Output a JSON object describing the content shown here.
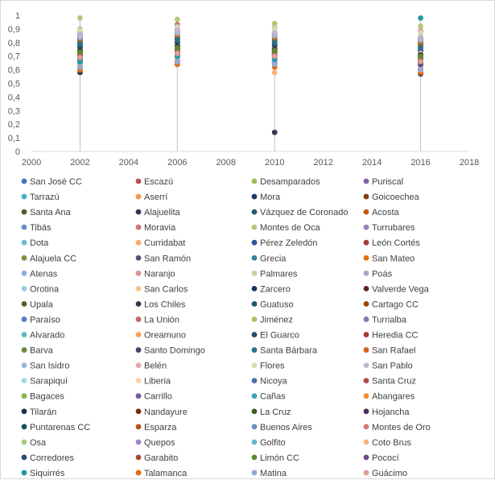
{
  "chart_data": {
    "type": "scatter",
    "title": "",
    "xlabel": "",
    "ylabel": "",
    "xlim": [
      2000,
      2018
    ],
    "ylim": [
      0,
      1
    ],
    "x_ticks": [
      2000,
      2002,
      2004,
      2006,
      2008,
      2010,
      2012,
      2014,
      2016,
      2018
    ],
    "y_ticks": [
      0,
      0.1,
      0.2,
      0.3,
      0.4,
      0.5,
      0.6,
      0.7,
      0.8,
      0.9,
      1
    ],
    "y_tick_labels": [
      "0",
      "0,1",
      "0,2",
      "0,3",
      "0,4",
      "0,5",
      "0,6",
      "0,7",
      "0,8",
      "0,9",
      "1"
    ],
    "grid": false,
    "legend_position": "bottom",
    "legend_columns": 4,
    "drop_lines": true,
    "x": [
      2002,
      2006,
      2010,
      2016
    ],
    "series": [
      {
        "name": "San José CC",
        "color": "#4472c4",
        "values": [
          0.78,
          0.82,
          0.74,
          0.72
        ]
      },
      {
        "name": "Escazú",
        "color": "#c0504d",
        "values": [
          0.86,
          0.93,
          0.87,
          0.88
        ]
      },
      {
        "name": "Desamparados",
        "color": "#9bbb59",
        "values": [
          0.76,
          0.79,
          0.76,
          0.7
        ]
      },
      {
        "name": "Puriscal",
        "color": "#8064a2",
        "values": [
          0.7,
          0.72,
          0.7,
          0.66
        ]
      },
      {
        "name": "Tarrazú",
        "color": "#4bacc6",
        "values": [
          0.67,
          0.71,
          0.69,
          0.64
        ]
      },
      {
        "name": "Aserrí",
        "color": "#f79646",
        "values": [
          0.72,
          0.74,
          0.73,
          0.68
        ]
      },
      {
        "name": "Mora",
        "color": "#1f3864",
        "values": [
          0.74,
          0.78,
          0.74,
          0.71
        ]
      },
      {
        "name": "Goicoechea",
        "color": "#843c0c",
        "values": [
          0.79,
          0.83,
          0.8,
          0.77
        ]
      },
      {
        "name": "Santa Ana",
        "color": "#4e6128",
        "values": [
          0.84,
          0.87,
          0.85,
          0.83
        ]
      },
      {
        "name": "Alajuelita",
        "color": "#3f3151",
        "values": [
          0.69,
          0.72,
          0.7,
          0.66
        ]
      },
      {
        "name": "Vázquez de Coronado",
        "color": "#215968",
        "values": [
          0.8,
          0.85,
          0.82,
          0.79
        ]
      },
      {
        "name": "Acosta",
        "color": "#c55a11",
        "values": [
          0.68,
          0.72,
          0.7,
          0.65
        ]
      },
      {
        "name": "Tibás",
        "color": "#6a8cc8",
        "values": [
          0.8,
          0.83,
          0.81,
          0.78
        ]
      },
      {
        "name": "Moravia",
        "color": "#cd7371",
        "values": [
          0.85,
          0.87,
          0.84,
          0.82
        ]
      },
      {
        "name": "Montes de Oca",
        "color": "#afc97a",
        "values": [
          0.98,
          0.97,
          0.94,
          0.92
        ]
      },
      {
        "name": "Turrubares",
        "color": "#9983b5",
        "values": [
          0.68,
          0.71,
          0.69,
          0.65
        ]
      },
      {
        "name": "Dota",
        "color": "#6fbdd1",
        "values": [
          0.71,
          0.74,
          0.72,
          0.68
        ]
      },
      {
        "name": "Curridabat",
        "color": "#f9ab6b",
        "values": [
          0.88,
          0.9,
          0.87,
          0.84
        ]
      },
      {
        "name": "Pérez Zeledón",
        "color": "#2e5597",
        "values": [
          0.74,
          0.77,
          0.75,
          0.71
        ]
      },
      {
        "name": "León Cortés",
        "color": "#a33b38",
        "values": [
          0.7,
          0.73,
          0.71,
          0.67
        ]
      },
      {
        "name": "Alajuela CC",
        "color": "#77943c",
        "values": [
          0.79,
          0.82,
          0.8,
          0.76
        ]
      },
      {
        "name": "San Ramón",
        "color": "#5f497a",
        "values": [
          0.77,
          0.8,
          0.78,
          0.74
        ]
      },
      {
        "name": "Grecia",
        "color": "#31859c",
        "values": [
          0.76,
          0.79,
          0.77,
          0.73
        ]
      },
      {
        "name": "San Mateo",
        "color": "#e46c0a",
        "values": [
          0.72,
          0.75,
          0.73,
          0.69
        ]
      },
      {
        "name": "Atenas",
        "color": "#8eaadb",
        "values": [
          0.78,
          0.81,
          0.79,
          0.75
        ]
      },
      {
        "name": "Naranjo",
        "color": "#d99594",
        "values": [
          0.73,
          0.76,
          0.74,
          0.7
        ]
      },
      {
        "name": "Palmares",
        "color": "#c3d69b",
        "values": [
          0.75,
          0.78,
          0.76,
          0.72
        ]
      },
      {
        "name": "Poás",
        "color": "#b2a1c7",
        "values": [
          0.73,
          0.76,
          0.74,
          0.7
        ]
      },
      {
        "name": "Orotina",
        "color": "#92cddc",
        "values": [
          0.74,
          0.77,
          0.75,
          0.71
        ]
      },
      {
        "name": "San Carlos",
        "color": "#fac090",
        "values": [
          0.72,
          0.75,
          0.73,
          0.7
        ]
      },
      {
        "name": "Zarcero",
        "color": "#17375e",
        "values": [
          0.75,
          0.78,
          0.76,
          0.72
        ]
      },
      {
        "name": "Valverde Vega",
        "color": "#632523",
        "values": [
          0.74,
          0.77,
          0.75,
          0.71
        ]
      },
      {
        "name": "Upala",
        "color": "#4f6228",
        "values": [
          0.62,
          0.66,
          0.64,
          0.6
        ]
      },
      {
        "name": "Los Chiles",
        "color": "#403152",
        "values": [
          0.58,
          0.64,
          0.14,
          0.57
        ]
      },
      {
        "name": "Guatuso",
        "color": "#205867",
        "values": [
          0.65,
          0.69,
          0.67,
          0.62
        ]
      },
      {
        "name": "Cartago CC",
        "color": "#974806",
        "values": [
          0.81,
          0.84,
          0.82,
          0.79
        ]
      },
      {
        "name": "Paraíso",
        "color": "#5b7fc1",
        "values": [
          0.73,
          0.76,
          0.74,
          0.7
        ]
      },
      {
        "name": "La Unión",
        "color": "#c86764",
        "values": [
          0.82,
          0.85,
          0.83,
          0.8
        ]
      },
      {
        "name": "Jiménez",
        "color": "#a5c46c",
        "values": [
          0.7,
          0.73,
          0.71,
          0.67
        ]
      },
      {
        "name": "Turrialba",
        "color": "#8d74ad",
        "values": [
          0.71,
          0.74,
          0.72,
          0.68
        ]
      },
      {
        "name": "Alvarado",
        "color": "#5cb5cc",
        "values": [
          0.72,
          0.75,
          0.73,
          0.69
        ]
      },
      {
        "name": "Oreamuno",
        "color": "#f8a05a",
        "values": [
          0.75,
          0.78,
          0.76,
          0.72
        ]
      },
      {
        "name": "El Guarco",
        "color": "#26476b",
        "values": [
          0.77,
          0.8,
          0.78,
          0.74
        ]
      },
      {
        "name": "Heredia CC",
        "color": "#a23b2c",
        "values": [
          0.85,
          0.88,
          0.86,
          0.82
        ]
      },
      {
        "name": "Barva",
        "color": "#6c8a36",
        "values": [
          0.82,
          0.85,
          0.83,
          0.8
        ]
      },
      {
        "name": "Santo Domingo",
        "color": "#523e6a",
        "values": [
          0.86,
          0.89,
          0.87,
          0.83
        ]
      },
      {
        "name": "Santa Bárbara",
        "color": "#2a7288",
        "values": [
          0.79,
          0.82,
          0.8,
          0.76
        ]
      },
      {
        "name": "San Rafael",
        "color": "#d5621c",
        "values": [
          0.83,
          0.86,
          0.84,
          0.81
        ]
      },
      {
        "name": "San Isidro",
        "color": "#9cb6e0",
        "values": [
          0.84,
          0.87,
          0.85,
          0.82
        ]
      },
      {
        "name": "Belén",
        "color": "#e0a8a6",
        "values": [
          0.9,
          0.92,
          0.91,
          0.89
        ]
      },
      {
        "name": "Flores",
        "color": "#cfdfab",
        "values": [
          0.89,
          0.91,
          0.9,
          0.87
        ]
      },
      {
        "name": "San Pablo",
        "color": "#c2b4d2",
        "values": [
          0.86,
          0.89,
          0.87,
          0.84
        ]
      },
      {
        "name": "Sarapiquí",
        "color": "#a6d6e3",
        "values": [
          0.64,
          0.68,
          0.66,
          0.62
        ]
      },
      {
        "name": "Liberia",
        "color": "#fbd0ad",
        "values": [
          0.74,
          0.77,
          0.75,
          0.72
        ]
      },
      {
        "name": "Nicoya",
        "color": "#4a6fab",
        "values": [
          0.72,
          0.75,
          0.73,
          0.69
        ]
      },
      {
        "name": "Santa Cruz",
        "color": "#b44a47",
        "values": [
          0.73,
          0.76,
          0.74,
          0.71
        ]
      },
      {
        "name": "Bagaces",
        "color": "#8fb150",
        "values": [
          0.7,
          0.73,
          0.71,
          0.67
        ]
      },
      {
        "name": "Carrillo",
        "color": "#7558a0",
        "values": [
          0.72,
          0.75,
          0.73,
          0.7
        ]
      },
      {
        "name": "Cañas",
        "color": "#41a2bd",
        "values": [
          0.71,
          0.74,
          0.72,
          0.68
        ]
      },
      {
        "name": "Abangares",
        "color": "#f48b36",
        "values": [
          0.7,
          0.73,
          0.71,
          0.67
        ]
      },
      {
        "name": "Tilarán",
        "color": "#1b2f4f",
        "values": [
          0.74,
          0.77,
          0.75,
          0.71
        ]
      },
      {
        "name": "Nandayure",
        "color": "#7b2c11",
        "values": [
          0.69,
          0.72,
          0.7,
          0.66
        ]
      },
      {
        "name": "La Cruz",
        "color": "#3e5a1f",
        "values": [
          0.63,
          0.67,
          0.65,
          0.61
        ]
      },
      {
        "name": "Hojancha",
        "color": "#4a2c5c",
        "values": [
          0.73,
          0.76,
          0.74,
          0.7
        ]
      },
      {
        "name": "Puntarenas CC",
        "color": "#1d4e5c",
        "values": [
          0.72,
          0.75,
          0.73,
          0.69
        ]
      },
      {
        "name": "Esparza",
        "color": "#b35515",
        "values": [
          0.73,
          0.76,
          0.74,
          0.7
        ]
      },
      {
        "name": "Buenos Aires",
        "color": "#6a8fc4",
        "values": [
          0.63,
          0.67,
          0.65,
          0.6
        ]
      },
      {
        "name": "Montes de Oro",
        "color": "#d47a76",
        "values": [
          0.71,
          0.74,
          0.72,
          0.68
        ]
      },
      {
        "name": "Osa",
        "color": "#a9c97f",
        "values": [
          0.66,
          0.7,
          0.68,
          0.64
        ]
      },
      {
        "name": "Quepos",
        "color": "#9f86c0",
        "values": [
          0.7,
          0.73,
          0.71,
          0.67
        ]
      },
      {
        "name": "Golfito",
        "color": "#64b9d2",
        "values": [
          0.67,
          0.71,
          0.69,
          0.65
        ]
      },
      {
        "name": "Coto Brus",
        "color": "#f7b57a",
        "values": [
          0.64,
          0.68,
          0.58,
          0.62
        ]
      },
      {
        "name": "Corredores",
        "color": "#2b4b7a",
        "values": [
          0.66,
          0.7,
          0.68,
          0.64
        ]
      },
      {
        "name": "Garabito",
        "color": "#a04a30",
        "values": [
          0.7,
          0.73,
          0.71,
          0.67
        ]
      },
      {
        "name": "Limón CC",
        "color": "#5f8a2d",
        "values": [
          0.73,
          0.76,
          0.74,
          0.7
        ]
      },
      {
        "name": "Pococí",
        "color": "#6a4a8a",
        "values": [
          0.68,
          0.71,
          0.69,
          0.65
        ]
      },
      {
        "name": "Siquirrés",
        "color": "#1f9aa8",
        "values": [
          0.66,
          0.7,
          0.68,
          0.98
        ]
      },
      {
        "name": "Talamanca",
        "color": "#e06a10",
        "values": [
          0.6,
          0.64,
          0.62,
          0.58
        ]
      },
      {
        "name": "Matina",
        "color": "#93a9d4",
        "values": [
          0.62,
          0.66,
          0.64,
          0.6
        ]
      },
      {
        "name": "Guácimo",
        "color": "#dc9c98",
        "values": [
          0.69,
          0.72,
          0.7,
          0.66
        ]
      }
    ]
  }
}
